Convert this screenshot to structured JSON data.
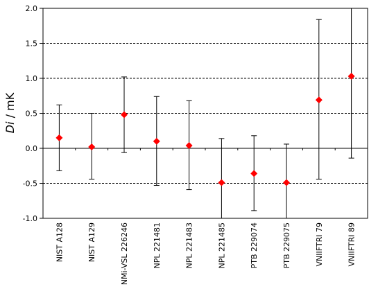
{
  "chart_data": {
    "type": "scatter",
    "title": "",
    "xlabel": "",
    "ylabel_italic": "Di",
    "ylabel_unit": " / mK",
    "ylim": [
      -1.0,
      2.0
    ],
    "yticks": [
      -1.0,
      -0.5,
      0.0,
      0.5,
      1.0,
      1.5,
      2.0
    ],
    "ytick_labels": [
      "-1.0",
      "-0.5",
      "0.0",
      "0.5",
      "1.0",
      "1.5",
      "2.0"
    ],
    "grid": "dashed horizontal at 1.5, 1.0, 0.5, -0.5",
    "marker": "diamond",
    "marker_color": "#ff0000",
    "errorbar_color": "#000000",
    "categories": [
      "NIST A128",
      "NIST A129",
      "NMi-VSL 226246",
      "NPL 221481",
      "NPL 221483",
      "NPL 221485",
      "PTB 229074",
      "PTB 229075",
      "VNIIFTRI 79",
      "VNIIFTRI 89"
    ],
    "values": [
      0.15,
      0.02,
      0.48,
      0.1,
      0.04,
      -0.49,
      -0.36,
      -0.49,
      0.69,
      1.03
    ],
    "error_low": [
      -0.32,
      -0.44,
      -0.06,
      -0.53,
      -0.59,
      -1.12,
      -0.89,
      -1.03,
      -0.44,
      -0.14
    ],
    "error_high": [
      0.62,
      0.5,
      1.02,
      0.74,
      0.68,
      0.14,
      0.18,
      0.06,
      1.84,
      2.06
    ]
  }
}
